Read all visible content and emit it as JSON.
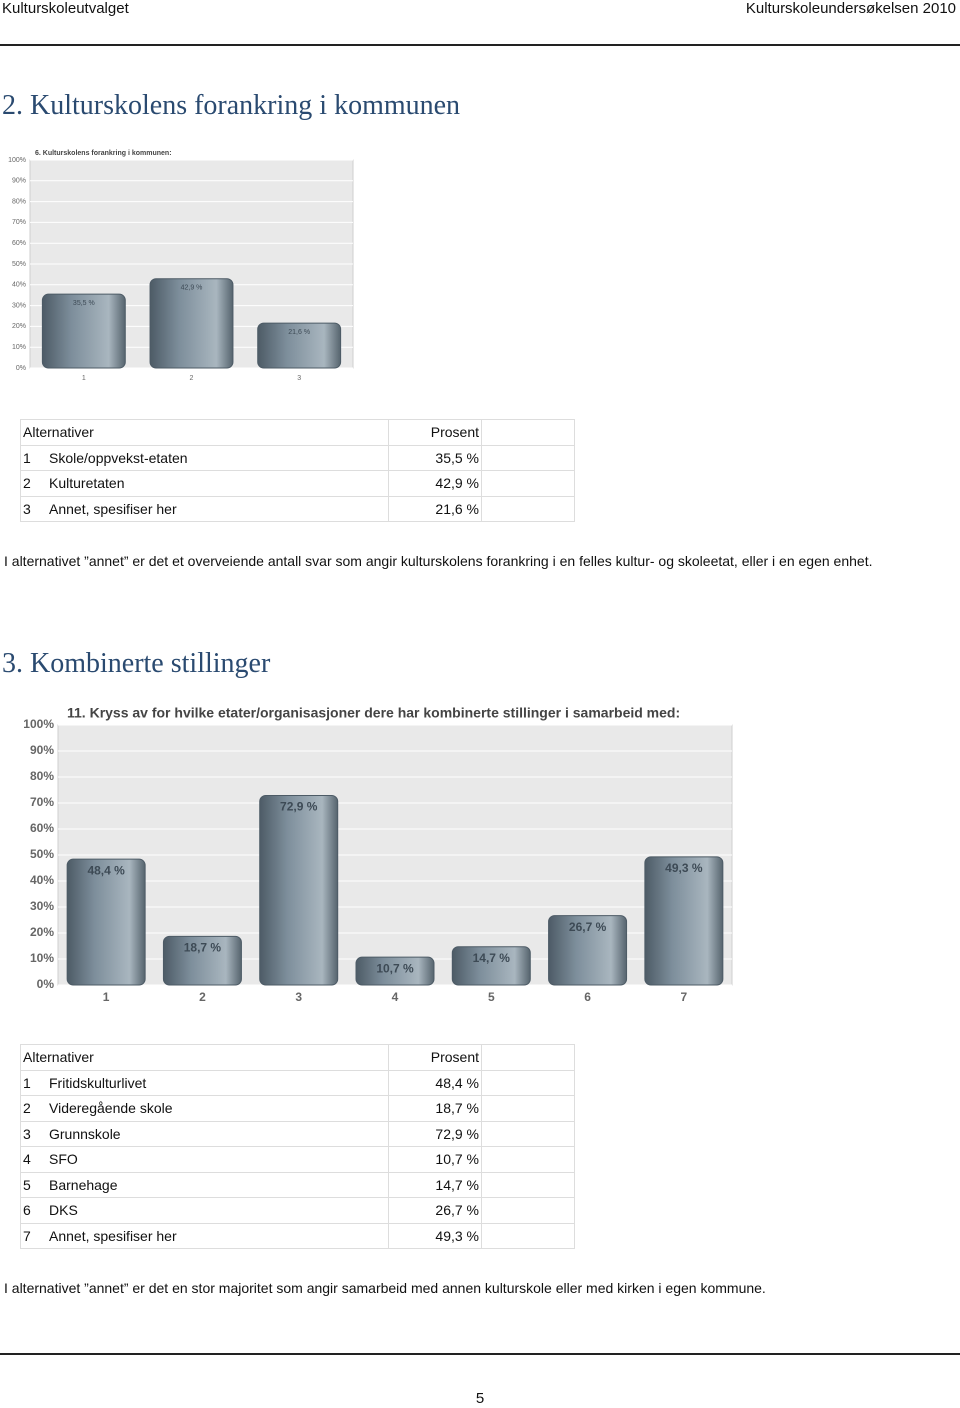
{
  "header": {
    "left": "Kulturskoleutvalget",
    "right": "Kulturskoleundersøkelsen 2010"
  },
  "sections": [
    {
      "heading": "2. Kulturskolens forankring i kommunen",
      "table": {
        "columns": [
          "Alternativer",
          "Prosent"
        ],
        "rows": [
          [
            "1",
            "Skole/oppvekst-etaten",
            "35,5 %"
          ],
          [
            "2",
            "Kulturetaten",
            "42,9 %"
          ],
          [
            "3",
            "Annet, spesifiser her",
            "21,6 %"
          ]
        ]
      },
      "note": "I alternativet ”annet” er det et overveiende antall svar som angir kulturskolens forankring i en felles kultur- og skoleetat, eller i en egen enhet."
    },
    {
      "heading": "3. Kombinerte stillinger",
      "table": {
        "columns": [
          "Alternativer",
          "Prosent"
        ],
        "rows": [
          [
            "1",
            "Fritidskulturlivet",
            "48,4 %"
          ],
          [
            "2",
            "Videregående skole",
            "18,7 %"
          ],
          [
            "3",
            "Grunnskole",
            "72,9 %"
          ],
          [
            "4",
            "SFO",
            "10,7 %"
          ],
          [
            "5",
            "Barnehage",
            "14,7 %"
          ],
          [
            "6",
            "DKS",
            "26,7 %"
          ],
          [
            "7",
            "Annet, spesifiser her",
            "49,3 %"
          ]
        ]
      },
      "note": "I alternativet ”annet” er det en stor majoritet som angir samarbeid med annen kulturskole eller med kirken i egen kommune."
    }
  ],
  "chart_data": [
    {
      "type": "bar",
      "title": "6. Kulturskolens forankring i kommunen:",
      "categories": [
        "1",
        "2",
        "3"
      ],
      "values": [
        35.5,
        42.9,
        21.6
      ],
      "value_labels": [
        "35,5 %",
        "42,9 %",
        "21,6 %"
      ],
      "color": "#7d8e9b",
      "ylim": [
        0,
        100
      ],
      "grid": true,
      "yticks": [
        {
          "value": 0,
          "label": "0%"
        },
        {
          "value": 10,
          "label": "10%"
        },
        {
          "value": 20,
          "label": "20%"
        },
        {
          "value": 30,
          "label": "30%"
        },
        {
          "value": 40,
          "label": "40%"
        },
        {
          "value": 50,
          "label": "50%"
        },
        {
          "value": 60,
          "label": "60%"
        },
        {
          "value": 70,
          "label": "70%"
        },
        {
          "value": 80,
          "label": "80%"
        },
        {
          "value": 90,
          "label": "90%"
        },
        {
          "value": 100,
          "label": "100%"
        }
      ]
    },
    {
      "type": "bar",
      "title": "11. Kryss av for hvilke etater/organisasjoner dere har kombinerte stillinger i samarbeid med:",
      "categories": [
        "1",
        "2",
        "3",
        "4",
        "5",
        "6",
        "7"
      ],
      "values": [
        48.4,
        18.7,
        72.9,
        10.7,
        14.7,
        26.7,
        49.3
      ],
      "value_labels": [
        "48,4 %",
        "18,7 %",
        "72,9 %",
        "10,7 %",
        "14,7 %",
        "26,7 %",
        "49,3 %"
      ],
      "color": "#7d8e9b",
      "ylim": [
        0,
        100
      ],
      "grid": true,
      "yticks": [
        {
          "value": 0,
          "label": "0%"
        },
        {
          "value": 10,
          "label": "10%"
        },
        {
          "value": 20,
          "label": "20%"
        },
        {
          "value": 30,
          "label": "30%"
        },
        {
          "value": 40,
          "label": "40%"
        },
        {
          "value": 50,
          "label": "50%"
        },
        {
          "value": 60,
          "label": "60%"
        },
        {
          "value": 70,
          "label": "70%"
        },
        {
          "value": 80,
          "label": "80%"
        },
        {
          "value": 90,
          "label": "90%"
        },
        {
          "value": 100,
          "label": "100%"
        }
      ]
    }
  ],
  "page_number": "5"
}
